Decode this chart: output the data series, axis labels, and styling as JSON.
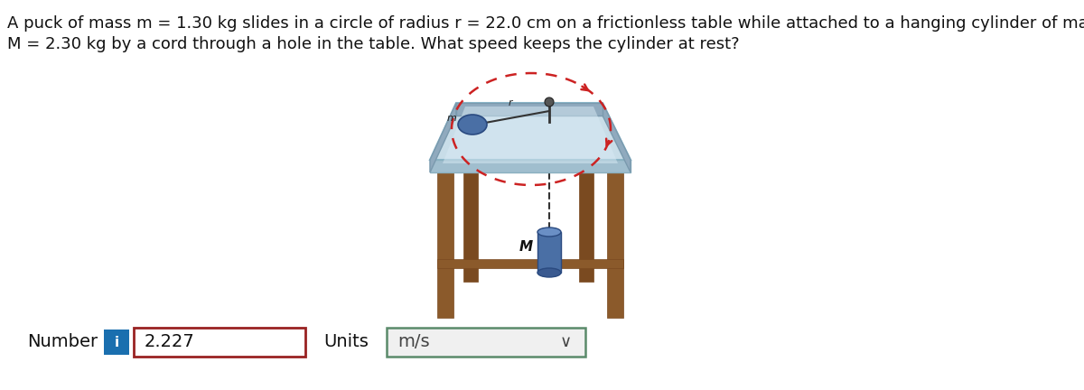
{
  "bg_color": "#ffffff",
  "problem_text_line1": "A puck of mass m = 1.30 kg slides in a circle of radius r = 22.0 cm on a frictionless table while attached to a hanging cylinder of mass",
  "problem_text_line2": "M = 2.30 kg by a cord through a hole in the table. What speed keeps the cylinder at rest?",
  "number_label": "Number",
  "info_button_color": "#1a6faf",
  "info_button_text": "i",
  "answer_value": "2.227",
  "answer_box_border": "#992222",
  "units_label": "Units",
  "units_value": "m/s",
  "units_box_border": "#5a8a6a",
  "font_size_problem": 13.5,
  "font_size_ui": 14,
  "table_wood_color": "#8b5a2b",
  "table_wood_dark": "#7a4a20",
  "table_top_face": "#c8dde8",
  "table_top_edge": "#a8c8d8",
  "table_top_rim": "#b0ccd8",
  "circle_color": "#cc2222",
  "puck_color": "#4a6fa5",
  "puck_edge": "#2a4a80",
  "cord_color": "#333333",
  "cylinder_color": "#4a6fa5",
  "cylinder_edge": "#2a4a80",
  "hole_color": "#444444"
}
